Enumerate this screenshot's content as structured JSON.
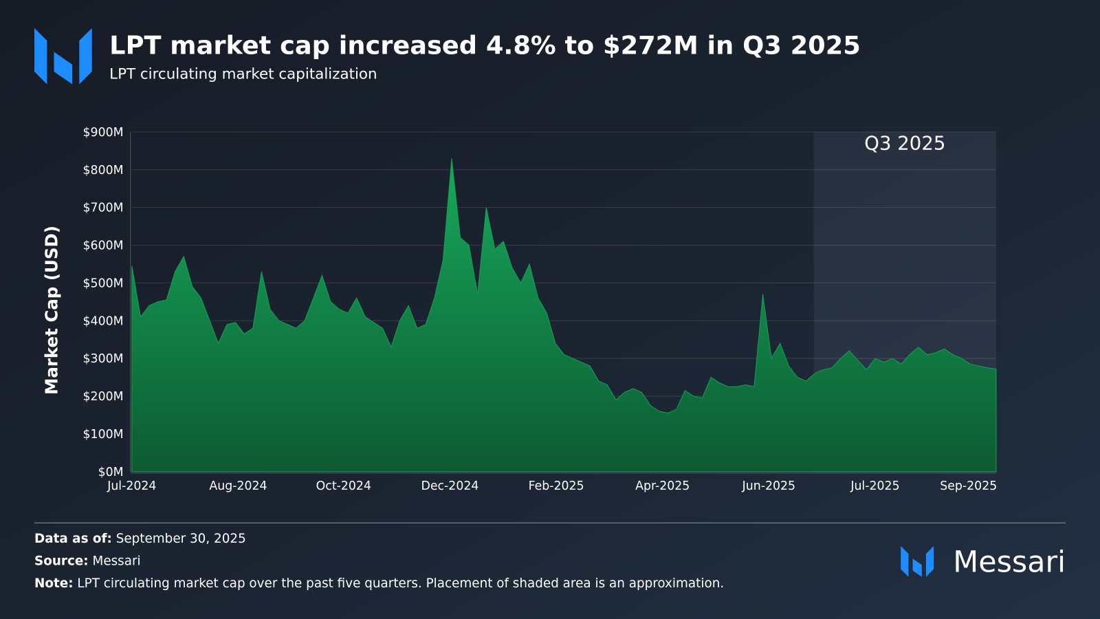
{
  "chart_data": {
    "type": "area",
    "title": "LPT market cap increased 4.8% to $272M in Q3 2025",
    "subtitle": "LPT circulating market capitalization",
    "y_label": "Market Cap (USD)",
    "color": "#14a055",
    "x": [
      0,
      1,
      2,
      3,
      4,
      5,
      6,
      7,
      8,
      9,
      10,
      11,
      12,
      13,
      14,
      15,
      16,
      17,
      18,
      19,
      20,
      21,
      22,
      23,
      24,
      25,
      26,
      27,
      28,
      29,
      30,
      31,
      32,
      33,
      34,
      35,
      36,
      37,
      38,
      39,
      40,
      41,
      42,
      43,
      44,
      45,
      46,
      47,
      48,
      49,
      50,
      51,
      52,
      53,
      54,
      55,
      56,
      57,
      58,
      59,
      60,
      61,
      62,
      63,
      64,
      65,
      66,
      67,
      68,
      69,
      70,
      71,
      72,
      73,
      74,
      75,
      76,
      77,
      78,
      79,
      80,
      81,
      82,
      83,
      84,
      85,
      86,
      87,
      88,
      89,
      90,
      91,
      92,
      93,
      94,
      95,
      96,
      97,
      98,
      99,
      100
    ],
    "values": [
      545,
      410,
      440,
      450,
      455,
      530,
      570,
      490,
      460,
      400,
      340,
      390,
      395,
      365,
      380,
      530,
      430,
      400,
      390,
      380,
      400,
      460,
      520,
      450,
      430,
      420,
      460,
      410,
      395,
      380,
      330,
      400,
      440,
      380,
      390,
      460,
      560,
      830,
      620,
      600,
      470,
      700,
      590,
      610,
      540,
      500,
      550,
      460,
      420,
      340,
      310,
      300,
      290,
      280,
      240,
      230,
      190,
      210,
      220,
      210,
      175,
      160,
      155,
      165,
      215,
      200,
      195,
      250,
      235,
      225,
      225,
      230,
      225,
      470,
      300,
      340,
      280,
      250,
      240,
      260,
      270,
      275,
      300,
      320,
      295,
      270,
      300,
      290,
      300,
      285,
      310,
      330,
      310,
      315,
      325,
      310,
      300,
      285,
      280,
      275,
      272
    ],
    "xlim": [
      0,
      100
    ],
    "xticks": [
      {
        "value": 0,
        "label": "Jul-2024"
      },
      {
        "value": 12.3,
        "label": "Aug-2024"
      },
      {
        "value": 24.5,
        "label": "Oct-2024"
      },
      {
        "value": 36.8,
        "label": "Dec-2024"
      },
      {
        "value": 49.1,
        "label": "Feb-2025"
      },
      {
        "value": 61.4,
        "label": "Apr-2025"
      },
      {
        "value": 73.7,
        "label": "Jun-2025"
      },
      {
        "value": 86.0,
        "label": "Jul-2025"
      },
      {
        "value": 96.8,
        "label": "Sep-2025"
      }
    ],
    "ylim": [
      0,
      900
    ],
    "yticks": [
      {
        "value": 0,
        "label": "$0M"
      },
      {
        "value": 100,
        "label": "$100M"
      },
      {
        "value": 200,
        "label": "$200M"
      },
      {
        "value": 300,
        "label": "$300M"
      },
      {
        "value": 400,
        "label": "$400M"
      },
      {
        "value": 500,
        "label": "$500M"
      },
      {
        "value": 600,
        "label": "$600M"
      },
      {
        "value": 700,
        "label": "$700M"
      },
      {
        "value": 800,
        "label": "$800M"
      },
      {
        "value": 900,
        "label": "$900M"
      }
    ],
    "grid": true,
    "shade": {
      "label": "Q3 2025",
      "x": [
        78.9,
        100
      ]
    }
  },
  "footer": {
    "data_as_of_label": "Data as of:",
    "data_as_of": "September 30, 2025",
    "source_label": "Source:",
    "source": "Messari",
    "note_label": "Note:",
    "note": "LPT circulating market cap over the past five quarters. Placement of shaded area is an approximation.",
    "brand": "Messari"
  }
}
